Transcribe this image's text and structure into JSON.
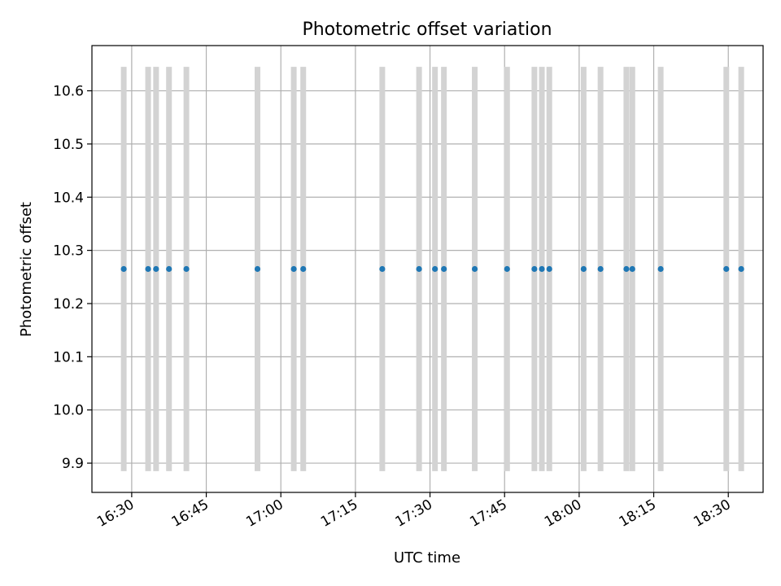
{
  "chart_data": {
    "type": "scatter",
    "title": "Photometric offset variation",
    "xlabel": "UTC time",
    "ylabel": "Photometric offset",
    "xlim": [
      "16:22",
      "18:37"
    ],
    "ylim": [
      9.845,
      10.685
    ],
    "x_ticks": [
      "16:30",
      "16:45",
      "17:00",
      "17:15",
      "17:30",
      "17:45",
      "18:00",
      "18:15",
      "18:30"
    ],
    "y_ticks": [
      "9.9",
      "10.0",
      "10.1",
      "10.2",
      "10.3",
      "10.4",
      "10.5",
      "10.6"
    ],
    "grid": true,
    "errorbar_color": "#d3d3d3",
    "point_color": "#1f77b4",
    "series": [
      {
        "x": [
          "16:28.4",
          "16:33.3",
          "16:34.9",
          "16:37.5",
          "16:41.0",
          "16:55.3",
          "17:02.6",
          "17:04.5",
          "17:20.4",
          "17:27.8",
          "17:31.0",
          "17:32.8",
          "17:39.0",
          "17:45.5",
          "17:51.0",
          "17:52.5",
          "17:54.0",
          "18:00.9",
          "18:04.3",
          "18:09.5",
          "18:10.7",
          "18:16.4",
          "18:29.6",
          "18:32.6"
        ],
        "y": [
          10.265,
          10.265,
          10.265,
          10.265,
          10.265,
          10.265,
          10.265,
          10.265,
          10.265,
          10.265,
          10.265,
          10.265,
          10.265,
          10.265,
          10.265,
          10.265,
          10.265,
          10.265,
          10.265,
          10.265,
          10.265,
          10.265,
          10.265,
          10.265
        ],
        "yerr": 0.38
      }
    ]
  }
}
